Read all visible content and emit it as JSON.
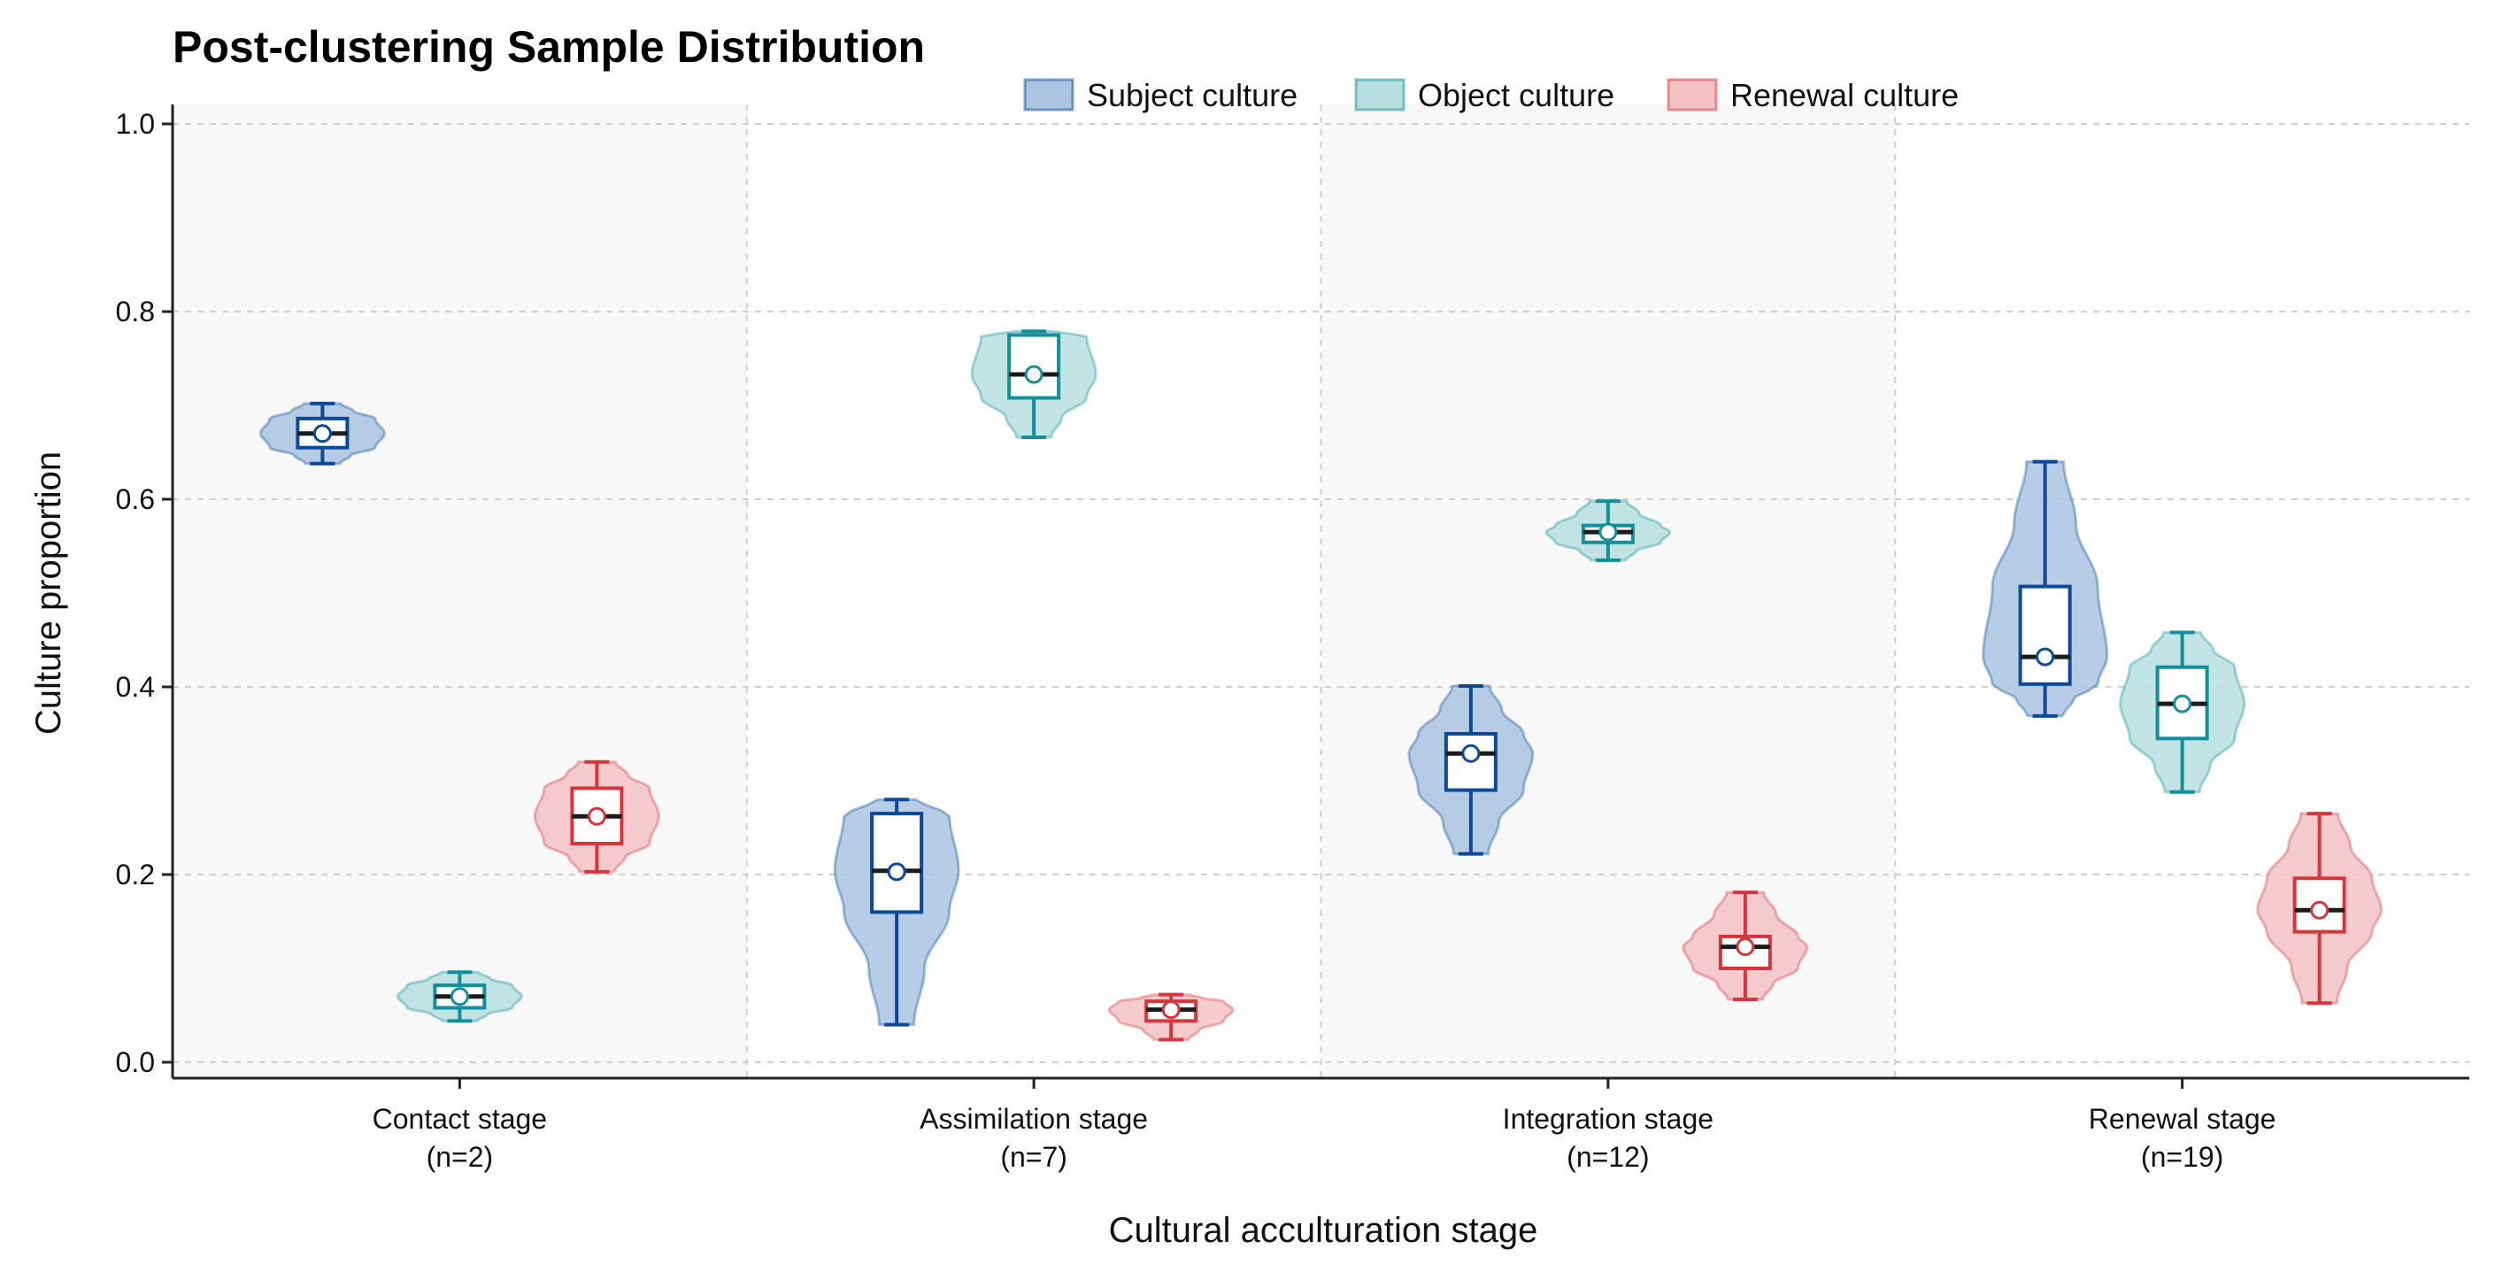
{
  "chart_data": {
    "type": "violin",
    "title": "Post-clustering Sample Distribution",
    "xlabel": "Cultural acculturation stage",
    "ylabel": "Culture proportion",
    "ylim": [
      -0.02,
      1.02
    ],
    "yticks": [
      "0.0",
      "0.2",
      "0.4",
      "0.6",
      "0.8",
      "1.0"
    ],
    "grid": true,
    "legend_position": "top-center",
    "categories": [
      {
        "name": "Contact stage",
        "n": "(n=2)"
      },
      {
        "name": "Assimilation stage",
        "n": "(n=7)"
      },
      {
        "name": "Integration stage",
        "n": "(n=12)"
      },
      {
        "name": "Renewal stage",
        "n": "(n=19)"
      }
    ],
    "series": [
      {
        "name": "Subject culture",
        "fill": "#a9c4e0",
        "stroke": "#0b4a96",
        "stats": [
          {
            "min": 0.638,
            "q1": 0.655,
            "median": 0.67,
            "q3": 0.686,
            "max": 0.702,
            "mean": 0.67
          },
          {
            "min": 0.04,
            "q1": 0.16,
            "median": 0.204,
            "q3": 0.265,
            "max": 0.28,
            "mean": 0.203
          },
          {
            "min": 0.222,
            "q1": 0.29,
            "median": 0.329,
            "q3": 0.35,
            "max": 0.401,
            "mean": 0.329
          },
          {
            "min": 0.369,
            "q1": 0.403,
            "median": 0.432,
            "q3": 0.507,
            "max": 0.64,
            "mean": 0.432
          }
        ]
      },
      {
        "name": "Object culture",
        "fill": "#b7dfe0",
        "stroke": "#128f9a",
        "stats": [
          {
            "min": 0.044,
            "q1": 0.058,
            "median": 0.07,
            "q3": 0.082,
            "max": 0.096,
            "mean": 0.07
          },
          {
            "min": 0.666,
            "q1": 0.708,
            "median": 0.733,
            "q3": 0.775,
            "max": 0.779,
            "mean": 0.733
          },
          {
            "min": 0.535,
            "q1": 0.554,
            "median": 0.565,
            "q3": 0.572,
            "max": 0.598,
            "mean": 0.565
          },
          {
            "min": 0.288,
            "q1": 0.345,
            "median": 0.382,
            "q3": 0.421,
            "max": 0.458,
            "mean": 0.382
          }
        ]
      },
      {
        "name": "Renewal culture",
        "fill": "#f5c2c4",
        "stroke": "#d5363b",
        "stats": [
          {
            "min": 0.203,
            "q1": 0.233,
            "median": 0.262,
            "q3": 0.292,
            "max": 0.32,
            "mean": 0.262
          },
          {
            "min": 0.024,
            "q1": 0.044,
            "median": 0.056,
            "q3": 0.065,
            "max": 0.072,
            "mean": 0.056
          },
          {
            "min": 0.067,
            "q1": 0.1,
            "median": 0.123,
            "q3": 0.134,
            "max": 0.181,
            "mean": 0.123
          },
          {
            "min": 0.063,
            "q1": 0.139,
            "median": 0.162,
            "q3": 0.196,
            "max": 0.265,
            "mean": 0.162
          }
        ]
      }
    ]
  }
}
